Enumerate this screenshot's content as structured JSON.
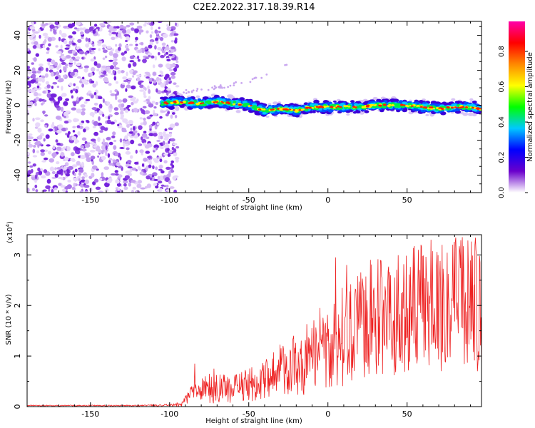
{
  "title": "C2E2.2022.317.18.39.R14",
  "colors": {
    "snr_line": "#ee2222",
    "scatter_bg": "#7a2ae0",
    "axis": "#000000"
  },
  "chart_data": [
    {
      "type": "heatmap",
      "xlabel": "Height of straight line (km)",
      "ylabel": "Frequency (Hz)",
      "xlim": [
        -190,
        97
      ],
      "ylim": [
        -50,
        48
      ],
      "x_ticks": [
        -150,
        -100,
        -50,
        0,
        50
      ],
      "y_ticks": [
        -40,
        -20,
        0,
        20,
        40
      ],
      "grid": false,
      "signal_start_km": -105,
      "noise_region_km": [
        -190,
        -97
      ],
      "signal_ridge": {
        "x": [
          -105,
          -95,
          -80,
          -70,
          -60,
          -50,
          -40,
          -30,
          -20,
          -10,
          0,
          10,
          20,
          30,
          40,
          50,
          60,
          70,
          80,
          90,
          97
        ],
        "freq_hz": [
          1,
          2,
          1,
          2,
          1,
          0,
          -3,
          -2,
          -3,
          -1,
          -1,
          -1,
          -1,
          0,
          0,
          0,
          -1,
          -2,
          -1,
          -1,
          -2
        ]
      },
      "faint_trace": {
        "x": [
          -95,
          -80,
          -65,
          -50,
          -40,
          -30,
          -20
        ],
        "freq_hz": [
          7,
          9,
          11,
          14,
          17,
          21,
          28
        ]
      },
      "colorbar": {
        "label": "Normalized spectral amplitude",
        "range": [
          0,
          0.97
        ],
        "ticks": [
          "0.0",
          "0.2",
          "0.4",
          "0.6",
          "0.8"
        ],
        "tick_values": [
          0,
          0.2,
          0.4,
          0.6,
          0.8
        ],
        "colormap": [
          "#ffffff",
          "#6a00cc",
          "#0000ff",
          "#00c8ff",
          "#00ff00",
          "#ffff00",
          "#ff8800",
          "#ff0000",
          "#ff00aa"
        ]
      }
    },
    {
      "type": "line",
      "xlabel": "Height of straight line (km)",
      "ylabel": "SNR (10 * v/v)",
      "y_scale_label": "(x10",
      "y_scale_exponent": "4",
      "y_scale_close": ")",
      "xlim": [
        -190,
        97
      ],
      "ylim": [
        0,
        3.4
      ],
      "x_ticks": [
        -150,
        -100,
        -50,
        0,
        50
      ],
      "y_ticks": [
        0,
        1,
        2,
        3
      ],
      "grid": false,
      "series": [
        {
          "color": "#ee2222",
          "envelope_x": [
            -190,
            -120,
            -100,
            -92,
            -85,
            -75,
            -60,
            -45,
            -30,
            -15,
            0,
            10,
            20,
            30,
            40,
            50,
            60,
            70,
            80,
            90,
            97
          ],
          "envelope_y": [
            0.02,
            0.02,
            0.03,
            0.05,
            0.3,
            0.35,
            0.35,
            0.45,
            0.7,
            0.9,
            1.15,
            1.4,
            1.6,
            1.75,
            1.8,
            1.9,
            2.0,
            2.0,
            2.0,
            2.0,
            2.0
          ],
          "amplitude_y": [
            0.01,
            0.01,
            0.02,
            0.05,
            0.22,
            0.3,
            0.28,
            0.38,
            0.55,
            0.7,
            0.85,
            1.0,
            1.1,
            1.15,
            1.2,
            1.25,
            1.3,
            1.3,
            1.35,
            1.35,
            1.35
          ],
          "peak_points": [
            [
              -84,
              0.85
            ],
            [
              -72,
              0.75
            ],
            [
              -35,
              0.95
            ],
            [
              -22,
              1.35
            ],
            [
              -5,
              1.95
            ],
            [
              5,
              2.95
            ],
            [
              12,
              2.8
            ],
            [
              27,
              2.9
            ],
            [
              57,
              3.1
            ],
            [
              65,
              3.3
            ],
            [
              72,
              3.2
            ],
            [
              85,
              3.35
            ],
            [
              93,
              3.2
            ]
          ],
          "samples": 900,
          "seed": 7
        }
      ]
    }
  ]
}
